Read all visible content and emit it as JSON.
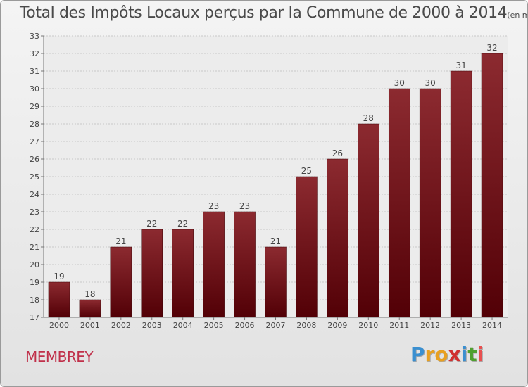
{
  "header": {
    "title": "Total des Impôts Locaux perçus par la Commune de 2000 à 2014",
    "unit": "(en milliers d'€)"
  },
  "commune": "MEMBREY",
  "logo": {
    "letters": [
      "P",
      "r",
      "o",
      "x",
      "i",
      "t",
      "i"
    ],
    "colors": [
      "#3a8fd0",
      "#e8a020",
      "#e8a020",
      "#d03030",
      "#3a8fd0",
      "#50a030",
      "#e85050"
    ]
  },
  "chart_data": {
    "type": "bar",
    "categories": [
      "2000",
      "2001",
      "2002",
      "2003",
      "2004",
      "2005",
      "2006",
      "2007",
      "2008",
      "2009",
      "2010",
      "2011",
      "2012",
      "2013",
      "2014"
    ],
    "values": [
      19,
      18,
      21,
      22,
      22,
      23,
      23,
      21,
      25,
      26,
      28,
      30,
      30,
      31,
      32
    ],
    "data_labels": [
      "19",
      "18",
      "21",
      "22",
      "22",
      "23",
      "23",
      "21",
      "25",
      "26",
      "28",
      "30",
      "30",
      "31",
      "32"
    ],
    "title": "Total des Impôts Locaux perçus par la Commune de 2000 à 2014",
    "xlabel": "",
    "ylabel": "",
    "ylim": [
      17,
      33
    ],
    "yticks": [
      "17",
      "18",
      "19",
      "20",
      "21",
      "22",
      "23",
      "24",
      "25",
      "26",
      "27",
      "28",
      "29",
      "30",
      "31",
      "32",
      "33"
    ],
    "grid": true,
    "bar_color": "#7a1a22"
  }
}
